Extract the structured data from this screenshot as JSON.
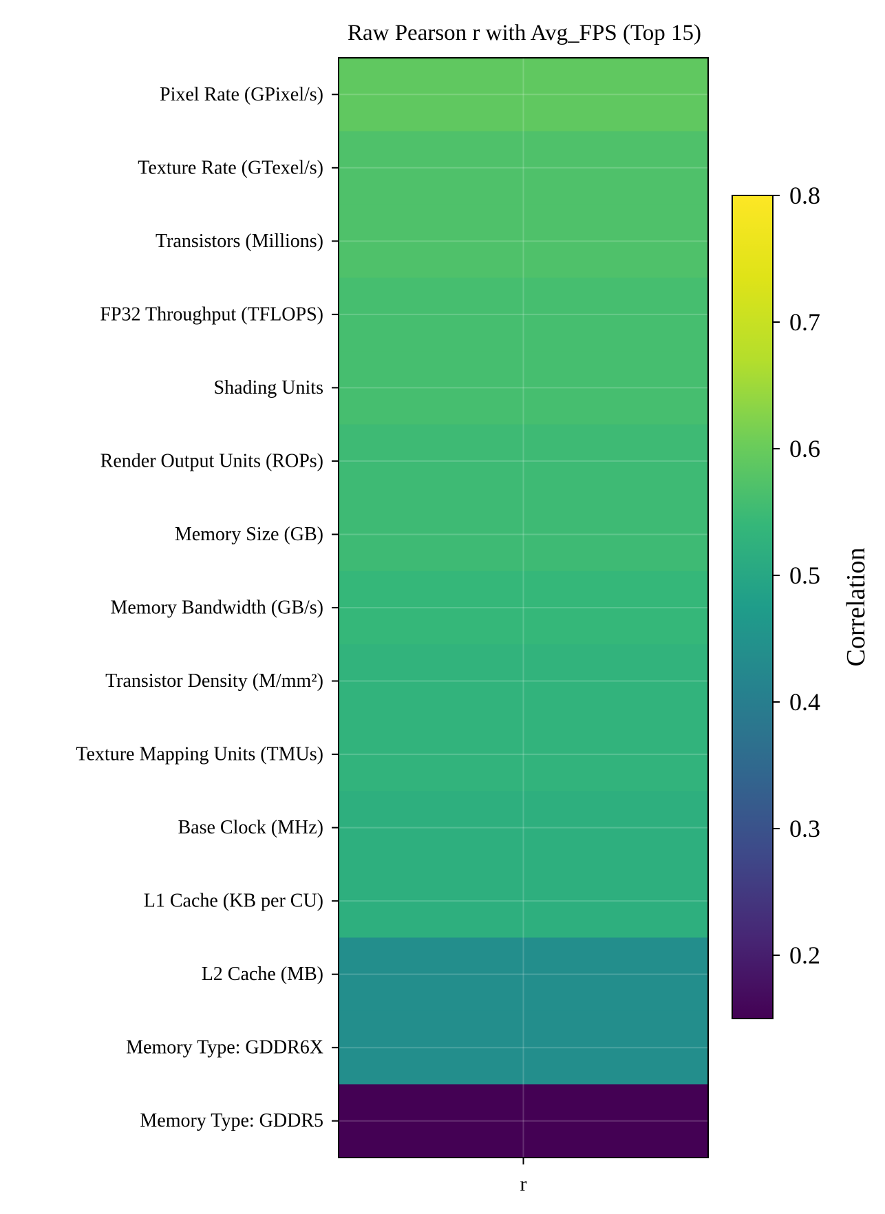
{
  "chart_data": {
    "type": "heatmap",
    "title": "Raw Pearson r with Avg_FPS (Top 15)",
    "x_categories": [
      "r"
    ],
    "y_categories": [
      "Pixel Rate (GPixel/s)",
      "Texture Rate (GTexel/s)",
      "Transistors (Millions)",
      "FP32 Throughput (TFLOPS)",
      "Shading Units",
      "Render Output Units (ROPs)",
      "Memory Size (GB)",
      "Memory Bandwidth (GB/s)",
      "Transistor Density (M/mm²)",
      "Texture Mapping Units (TMUs)",
      "Base Clock (MHz)",
      "L1 Cache (KB per CU)",
      "L2 Cache (MB)",
      "Memory Type: GDDR6X",
      "Memory Type: GDDR5"
    ],
    "values": [
      0.59,
      0.57,
      0.57,
      0.56,
      0.56,
      0.55,
      0.55,
      0.54,
      0.53,
      0.53,
      0.52,
      0.52,
      0.44,
      0.44,
      0.15
    ],
    "colormap": "viridis",
    "colorbar": {
      "label": "Correlation",
      "min": 0.15,
      "max": 0.8,
      "ticks": [
        0.2,
        0.3,
        0.4,
        0.5,
        0.6,
        0.7,
        0.8
      ],
      "tick_labels": [
        "0.2",
        "0.3",
        "0.4",
        "0.5",
        "0.6",
        "0.7",
        "0.8"
      ]
    },
    "grid": true
  }
}
